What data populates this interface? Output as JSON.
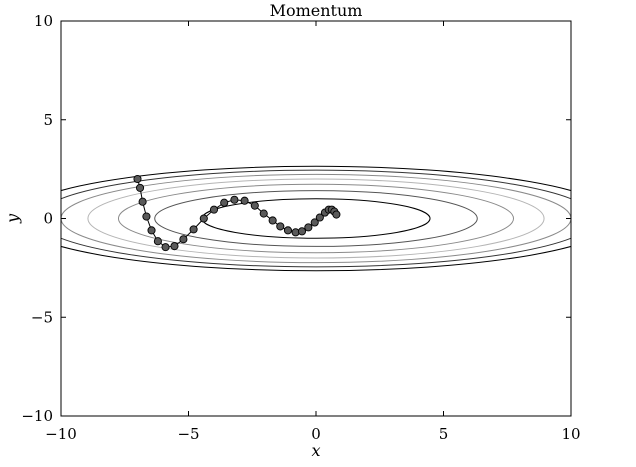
{
  "chart_data": {
    "type": "scatter",
    "title": "Momentum",
    "xlabel": "x",
    "ylabel": "y",
    "xlim": [
      -10,
      10
    ],
    "ylim": [
      -10,
      10
    ],
    "xticks": [
      -10,
      -5,
      0,
      5,
      10
    ],
    "yticks": [
      -10,
      -5,
      0,
      5,
      10
    ],
    "xtick_labels": [
      "−10",
      "−5",
      "0",
      "5",
      "10"
    ],
    "ytick_labels": [
      "−10",
      "−5",
      "0",
      "5",
      "10"
    ],
    "grid": false,
    "function": "f(x, y) = x^2 / 20 + y^2",
    "contour_levels": [
      1,
      2,
      3,
      4,
      5,
      6,
      7
    ],
    "contour_colors": [
      "#000000",
      "#555555",
      "#8a8a8a",
      "#b5b5b5",
      "#8a8a8a",
      "#333333",
      "#000000"
    ],
    "marker_color": "#5a5a5a",
    "line_color": "#000000",
    "path": {
      "x": [
        -7.0,
        -6.9,
        -6.8,
        -6.65,
        -6.45,
        -6.2,
        -5.9,
        -5.55,
        -5.2,
        -4.8,
        -4.4,
        -4.0,
        -3.6,
        -3.2,
        -2.8,
        -2.4,
        -2.05,
        -1.7,
        -1.4,
        -1.1,
        -0.8,
        -0.55,
        -0.3,
        -0.05,
        0.15,
        0.35,
        0.5,
        0.62,
        0.72,
        0.8
      ],
      "y": [
        2.0,
        1.55,
        0.85,
        0.1,
        -0.6,
        -1.15,
        -1.45,
        -1.4,
        -1.05,
        -0.55,
        0.0,
        0.45,
        0.8,
        0.95,
        0.9,
        0.65,
        0.25,
        -0.1,
        -0.4,
        -0.6,
        -0.7,
        -0.65,
        -0.45,
        -0.2,
        0.05,
        0.3,
        0.45,
        0.45,
        0.35,
        0.2
      ]
    }
  }
}
